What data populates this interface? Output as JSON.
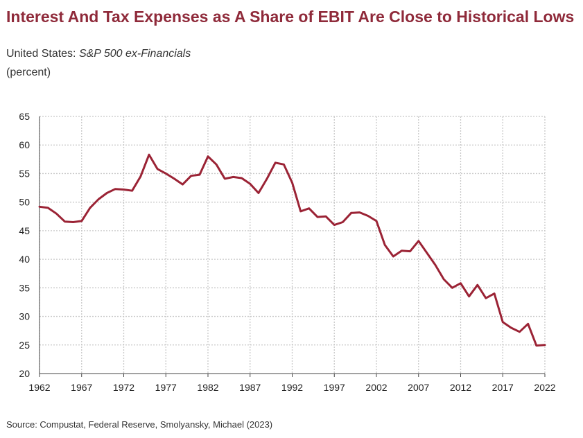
{
  "title": "Interest And Tax Expenses as A Share of EBIT Are Close to Historical Lows",
  "subtitle": {
    "prefix": "United States: ",
    "italic": "S&P 500 ex-Financials"
  },
  "unit_label": "(percent)",
  "source": "Source: Compustat, Federal Reserve, Smolyansky, Michael (2023)",
  "colors": {
    "title": "#8f2a3a",
    "line": "#9b2335",
    "grid": "#c8c8c8",
    "axis": "#444444"
  },
  "chart_data": {
    "type": "line",
    "title": "Interest And Tax Expenses as A Share of EBIT Are Close to Historical Lows",
    "xlabel": "",
    "ylabel": "(percent)",
    "xlim": [
      1962,
      2022
    ],
    "ylim": [
      20,
      65
    ],
    "x_ticks": [
      1962,
      1967,
      1972,
      1977,
      1982,
      1987,
      1992,
      1997,
      2002,
      2007,
      2012,
      2017,
      2022
    ],
    "y_ticks": [
      20,
      25,
      30,
      35,
      40,
      45,
      50,
      55,
      60,
      65
    ],
    "grid": true,
    "legend": "none",
    "series": [
      {
        "x": [
          1962,
          1963,
          1964,
          1965,
          1966,
          1967,
          1968,
          1969,
          1970,
          1971,
          1972,
          1973,
          1974,
          1975,
          1976,
          1977,
          1978,
          1979,
          1980,
          1981,
          1982,
          1983,
          1984,
          1985,
          1986,
          1987,
          1988,
          1989,
          1990,
          1991,
          1992,
          1993,
          1994,
          1995,
          1996,
          1997,
          1998,
          1999,
          2000,
          2001,
          2002,
          2003,
          2004,
          2005,
          2006,
          2007,
          2008,
          2009,
          2010,
          2011,
          2012,
          2013,
          2014,
          2015,
          2016,
          2017,
          2018,
          2019,
          2020,
          2021,
          2022
        ],
        "values": [
          49.2,
          49.0,
          48.0,
          46.6,
          46.5,
          46.7,
          49.0,
          50.5,
          51.6,
          52.3,
          52.2,
          52.0,
          54.5,
          58.3,
          55.8,
          55.0,
          54.1,
          53.1,
          54.6,
          54.8,
          58.0,
          56.6,
          54.1,
          54.4,
          54.2,
          53.2,
          51.6,
          54.1,
          56.9,
          56.6,
          53.4,
          48.4,
          48.9,
          47.4,
          47.5,
          46.0,
          46.5,
          48.1,
          48.2,
          47.6,
          46.7,
          42.5,
          40.5,
          41.5,
          41.4,
          43.2,
          41.1,
          39.0,
          36.5,
          35.0,
          35.8,
          33.5,
          35.5,
          33.2,
          34.0,
          29.0,
          28.0,
          27.3,
          28.7,
          24.9,
          25.0
        ]
      }
    ]
  }
}
